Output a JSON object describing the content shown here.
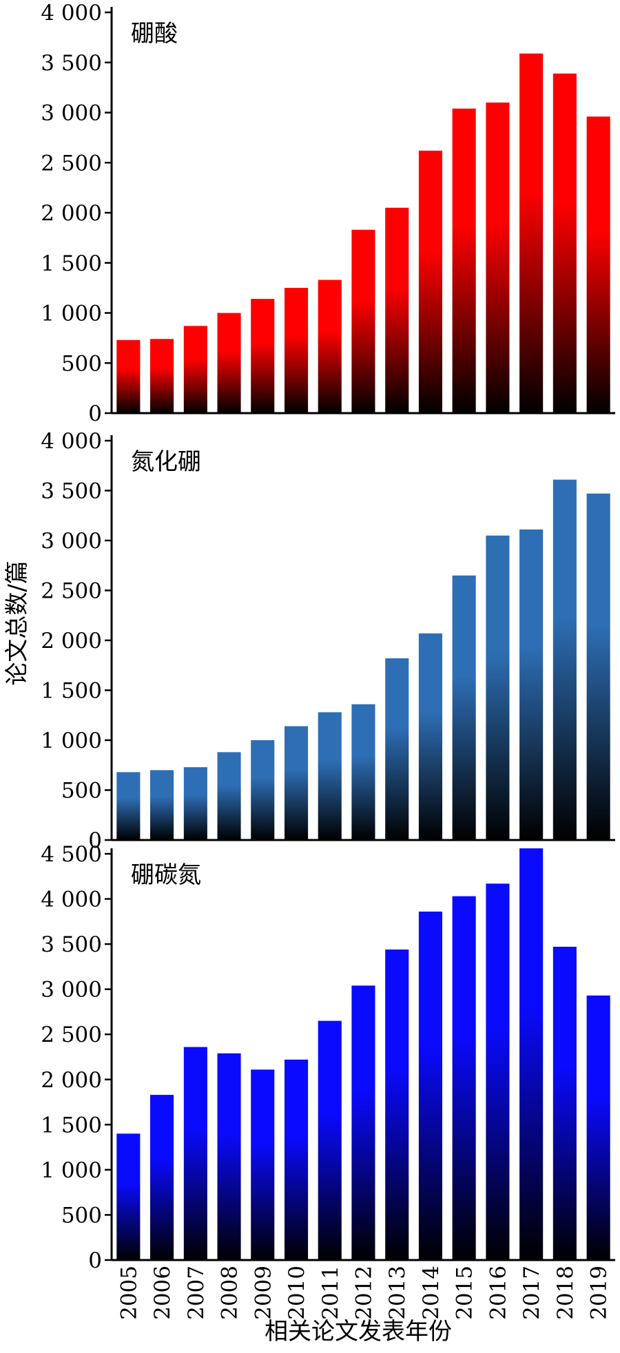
{
  "figure": {
    "ylabel": "论文总数/篇",
    "xlabel": "相关论文发表年份"
  },
  "chart_data": [
    {
      "type": "bar",
      "title": "硼酸",
      "categories": [
        "2005",
        "2006",
        "2007",
        "2008",
        "2009",
        "2010",
        "2011",
        "2012",
        "2013",
        "2014",
        "2015",
        "2016",
        "2017",
        "2018",
        "2019"
      ],
      "values": [
        730,
        740,
        870,
        1000,
        1140,
        1250,
        1330,
        1830,
        2050,
        2620,
        3040,
        3100,
        3590,
        3390,
        2960
      ],
      "ylim": [
        0,
        4000
      ],
      "yticks": [
        0,
        500,
        1000,
        1500,
        2000,
        2500,
        3000,
        3500,
        4000
      ],
      "ytick_labels": [
        "0",
        "500",
        "1 000",
        "1 500",
        "2 000",
        "2 500",
        "3 000",
        "3 500",
        "4 000"
      ],
      "bar_color": "#ff0000",
      "grid": false
    },
    {
      "type": "bar",
      "title": "氮化硼",
      "categories": [
        "2005",
        "2006",
        "2007",
        "2008",
        "2009",
        "2010",
        "2011",
        "2012",
        "2013",
        "2014",
        "2015",
        "2016",
        "2017",
        "2018",
        "2019"
      ],
      "values": [
        680,
        700,
        730,
        880,
        1000,
        1140,
        1280,
        1360,
        1820,
        2070,
        2650,
        3050,
        3110,
        3610,
        3470
      ],
      "ylim": [
        0,
        4000
      ],
      "yticks": [
        0,
        500,
        1000,
        1500,
        2000,
        2500,
        3000,
        3500,
        4000
      ],
      "ytick_labels": [
        "0",
        "500",
        "1 000",
        "1 500",
        "2 000",
        "2 500",
        "3 000",
        "3 500",
        "4 000"
      ],
      "bar_color": "#2e6eb5",
      "grid": false
    },
    {
      "type": "bar",
      "title": "硼碳氮",
      "categories": [
        "2005",
        "2006",
        "2007",
        "2008",
        "2009",
        "2010",
        "2011",
        "2012",
        "2013",
        "2014",
        "2015",
        "2016",
        "2017",
        "2018",
        "2019"
      ],
      "values": [
        1400,
        1830,
        2360,
        2290,
        2110,
        2220,
        2650,
        3040,
        3440,
        3860,
        4030,
        4170,
        4560,
        3470,
        2930
      ],
      "ylim": [
        0,
        4600
      ],
      "yticks": [
        0,
        500,
        1000,
        1500,
        2000,
        2500,
        3000,
        3500,
        4000,
        4500
      ],
      "ytick_labels": [
        "0",
        "500",
        "1 000",
        "1 500",
        "2 000",
        "2 500",
        "3 000",
        "3 500",
        "4 000",
        "4 500"
      ],
      "bar_color": "#0a0aff",
      "grid": false
    }
  ]
}
